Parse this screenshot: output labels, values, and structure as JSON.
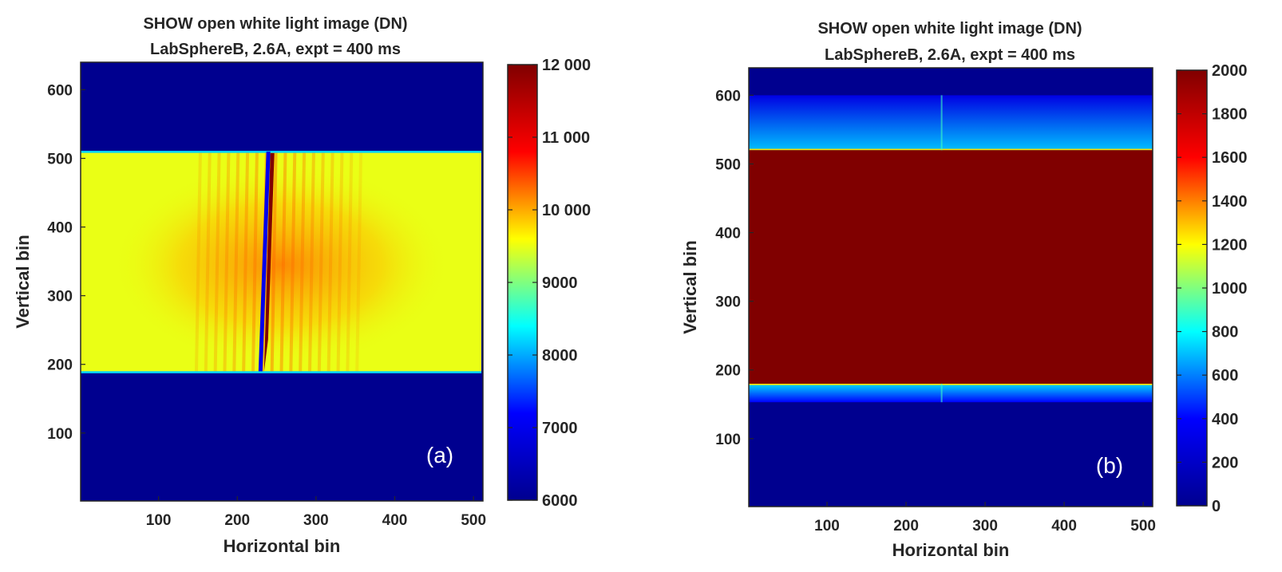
{
  "colormap": [
    "#00008f",
    "#0000ff",
    "#00ffff",
    "#ffff00",
    "#ff0000",
    "#800000"
  ],
  "chart_data": [
    {
      "type": "heatmap",
      "panel_label": "(a)",
      "title": "SHOW open white light image (DN)",
      "subtitle": "LabSphereB, 2.6A, expt = 400 ms",
      "xlabel": "Horizontal bin",
      "ylabel": "Vertical bin",
      "xlim": [
        1,
        512
      ],
      "ylim": [
        1,
        640
      ],
      "xticks": [
        100,
        200,
        300,
        400,
        500
      ],
      "yticks": [
        100,
        200,
        300,
        400,
        500,
        600
      ],
      "colorbar": {
        "range": [
          6000,
          12000
        ],
        "ticks": [
          6000,
          7000,
          8000,
          9000,
          10000,
          11000,
          12000
        ],
        "tick_labels": [
          "6000",
          "7000",
          "8000",
          "9000",
          "10 000",
          "11 000",
          "12 000"
        ]
      },
      "regions": [
        {
          "name": "background",
          "rows": [
            1,
            640
          ],
          "value": 6000
        },
        {
          "name": "illuminated band",
          "rows": [
            190,
            508
          ],
          "value": 9500
        },
        {
          "name": "central brightening",
          "rows": [
            220,
            470
          ],
          "value": 9900
        }
      ],
      "fringes": {
        "x_range": [
          150,
          360
        ],
        "period": 12,
        "value": 10300
      },
      "diagonal_feature": {
        "x_top": 243,
        "x_bottom": 233,
        "rows": [
          190,
          510
        ],
        "bright_value": 12000,
        "dark_value": 7000
      }
    },
    {
      "type": "heatmap",
      "panel_label": "(b)",
      "title": "SHOW open white light image (DN)",
      "subtitle": "LabSphereB, 2.6A, expt = 400 ms",
      "xlabel": "Horizontal bin",
      "ylabel": "Vertical bin",
      "xlim": [
        1,
        512
      ],
      "ylim": [
        1,
        640
      ],
      "xticks": [
        100,
        200,
        300,
        400,
        500
      ],
      "yticks": [
        100,
        200,
        300,
        400,
        500,
        600
      ],
      "colorbar": {
        "range": [
          0,
          2000
        ],
        "ticks": [
          0,
          200,
          400,
          600,
          800,
          1000,
          1200,
          1400,
          1600,
          1800,
          2000
        ],
        "tick_labels": [
          "0",
          "200",
          "400",
          "600",
          "800",
          "1000",
          "1200",
          "1400",
          "1600",
          "1800",
          "2000"
        ]
      },
      "regions": [
        {
          "name": "background",
          "rows": [
            1,
            640
          ],
          "value": 0
        },
        {
          "name": "upper stray light",
          "rows": [
            520,
            600
          ],
          "value": 550
        },
        {
          "name": "lower stray light",
          "rows": [
            153,
            180
          ],
          "value": 600
        },
        {
          "name": "saturated band",
          "rows": [
            180,
            520
          ],
          "value": 2000
        }
      ]
    }
  ]
}
